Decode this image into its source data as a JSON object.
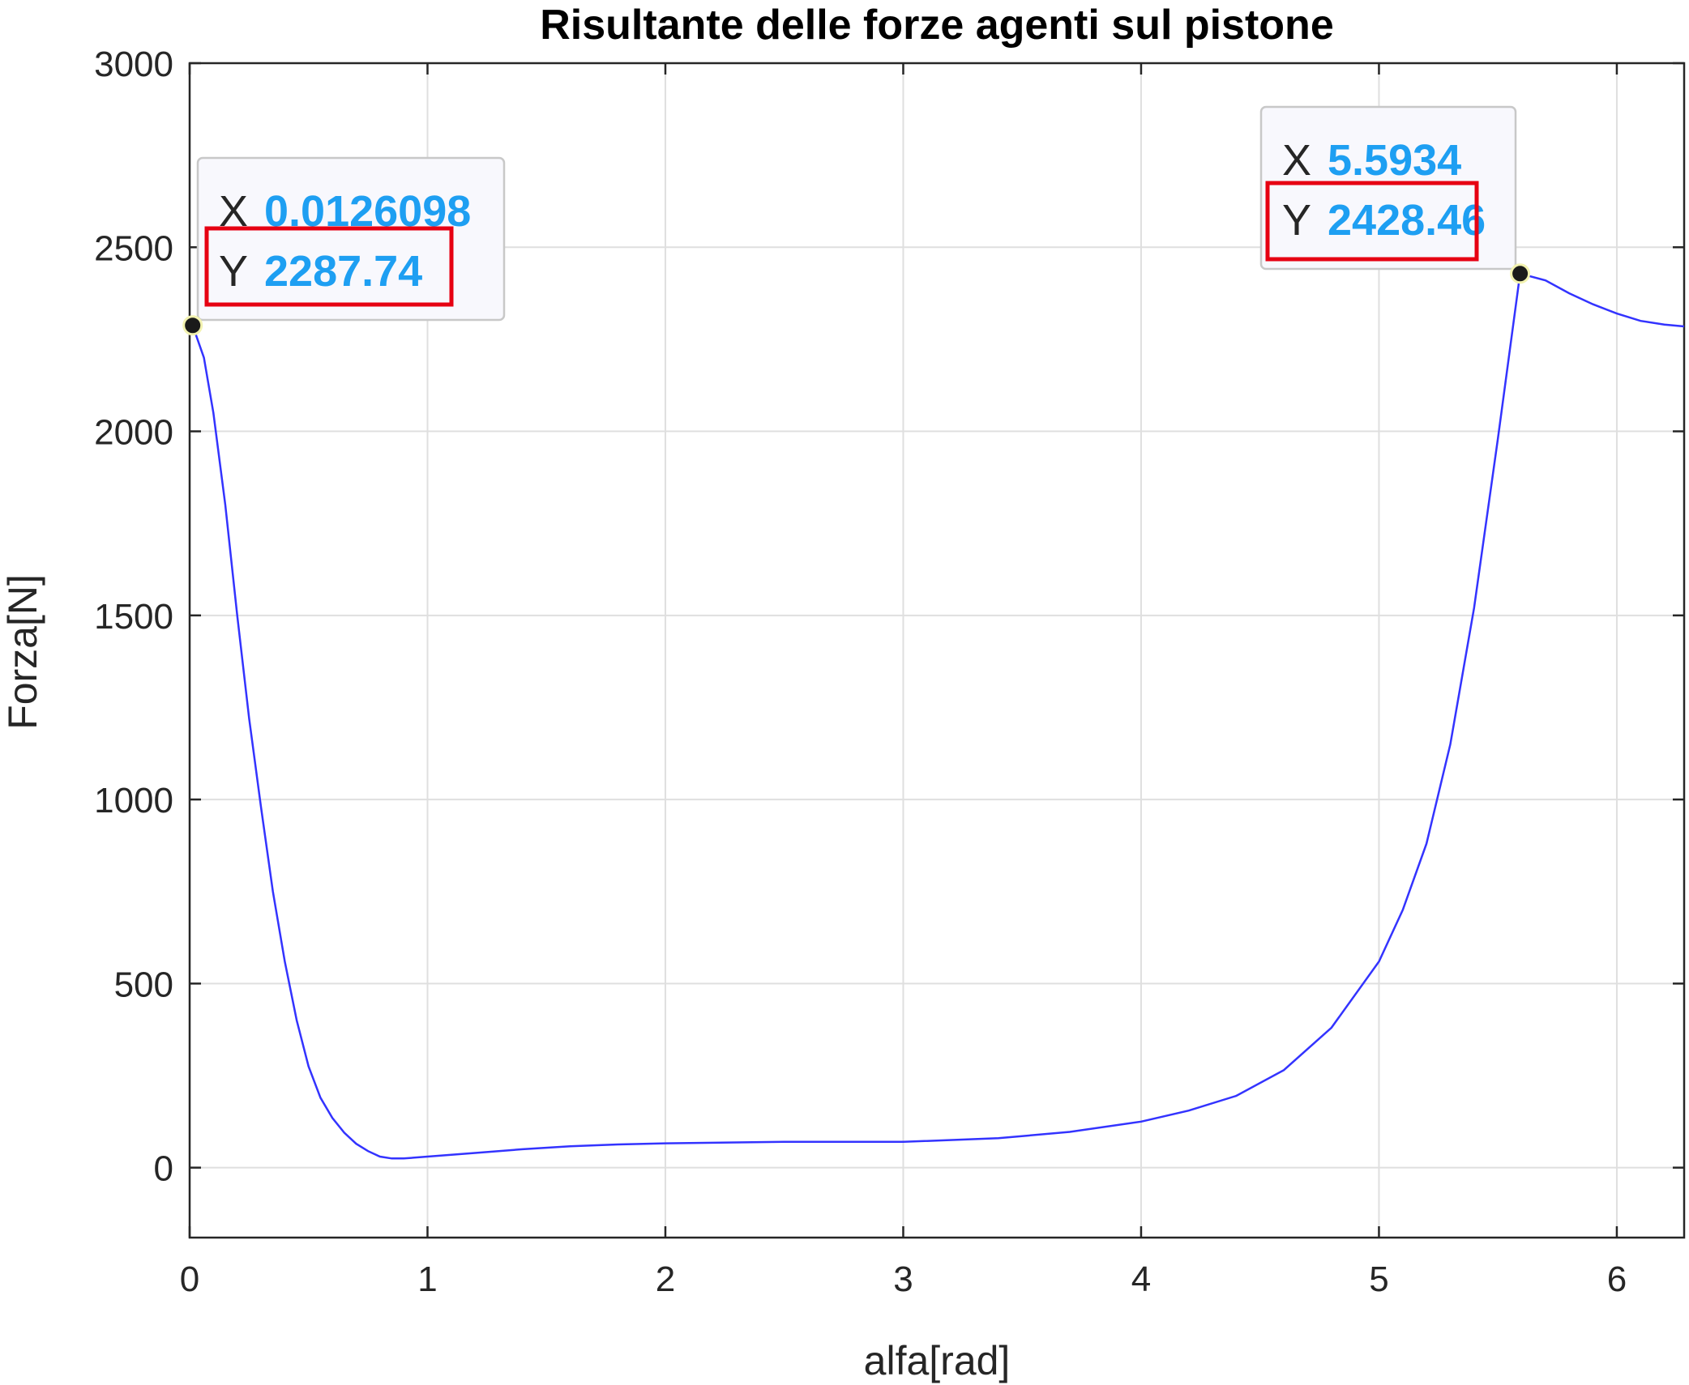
{
  "chart_data": {
    "type": "line",
    "title": "Risultante delle forze agenti sul pistone",
    "xlabel": "alfa[rad]",
    "ylabel": "Forza[N]",
    "xlim": [
      0,
      6.283
    ],
    "ylim": [
      -190,
      3000
    ],
    "xticks": [
      0,
      1,
      2,
      3,
      4,
      5,
      6
    ],
    "yticks": [
      0,
      500,
      1000,
      1500,
      2000,
      2500,
      3000
    ],
    "grid": true,
    "line_color": "#3333ff",
    "series": [
      {
        "x": [
          0,
          0.0126,
          0.06,
          0.1,
          0.15,
          0.2,
          0.25,
          0.3,
          0.35,
          0.4,
          0.45,
          0.5,
          0.55,
          0.6,
          0.65,
          0.7,
          0.75,
          0.8,
          0.85,
          0.9,
          1.0,
          1.2,
          1.4,
          1.6,
          1.8,
          2.0,
          2.5,
          3.0,
          3.4,
          3.7,
          4.0,
          4.2,
          4.4,
          4.6,
          4.8,
          5.0,
          5.1,
          5.2,
          5.3,
          5.4,
          5.5,
          5.5934,
          5.7,
          5.8,
          5.9,
          6.0,
          6.1,
          6.2,
          6.283
        ],
        "y": [
          2300,
          2287.74,
          2200,
          2050,
          1800,
          1500,
          1220,
          980,
          750,
          560,
          400,
          275,
          190,
          135,
          95,
          65,
          45,
          30,
          25,
          25,
          30,
          40,
          50,
          58,
          63,
          66,
          70,
          70,
          80,
          97,
          125,
          155,
          195,
          265,
          380,
          560,
          700,
          880,
          1150,
          1520,
          1980,
          2428.46,
          2410,
          2375,
          2345,
          2320,
          2300,
          2290,
          2285
        ]
      }
    ],
    "datatips": [
      {
        "x_key": "X",
        "x_value": "0.0126098",
        "y_key": "Y",
        "y_value": "2287.74",
        "x": 0.0126098,
        "y": 2287.74,
        "highlight_color": "#e60012"
      },
      {
        "x_key": "X",
        "x_value": "5.5934",
        "y_key": "Y",
        "y_value": "2428.46",
        "x": 5.5934,
        "y": 2428.46,
        "highlight_color": "#e60012"
      }
    ]
  }
}
